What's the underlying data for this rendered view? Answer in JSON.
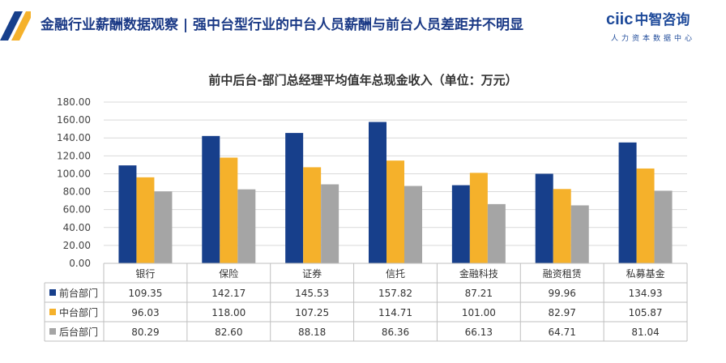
{
  "header": {
    "title": "金融行业薪酬数据观察 | 强中台型行业的中台人员薪酬与前台人员差距并不明显",
    "logo_main": "ciic",
    "logo_cn": "中智咨询",
    "logo_sub": "人力资本数据中心"
  },
  "colors": {
    "accent_navy": "#173f8b",
    "accent_gold": "#f5b12b",
    "series": [
      "#173f8b",
      "#f5b12b",
      "#a5a5a5"
    ]
  },
  "chart_data": {
    "type": "bar",
    "title": "前中后台-部门总经理平均值年总现金收入（单位：万元）",
    "categories": [
      "银行",
      "保险",
      "证券",
      "信托",
      "金融科技",
      "融资租赁",
      "私募基金"
    ],
    "series": [
      {
        "name": "前台部门",
        "values": [
          "109.35",
          "142.17",
          "145.53",
          "157.82",
          "87.21",
          "99.96",
          "134.93"
        ]
      },
      {
        "name": "中台部门",
        "values": [
          "96.03",
          "118.00",
          "107.25",
          "114.71",
          "101.00",
          "82.97",
          "105.87"
        ]
      },
      {
        "name": "后台部门",
        "values": [
          "80.29",
          "82.60",
          "88.18",
          "86.36",
          "66.13",
          "64.71",
          "81.04"
        ]
      }
    ],
    "ylim": [
      0,
      180
    ],
    "y_ticks": [
      "0.00",
      "20.00",
      "40.00",
      "60.00",
      "80.00",
      "100.00",
      "120.00",
      "140.00",
      "160.00",
      "180.00"
    ],
    "grid": true,
    "legend": "data-table"
  }
}
